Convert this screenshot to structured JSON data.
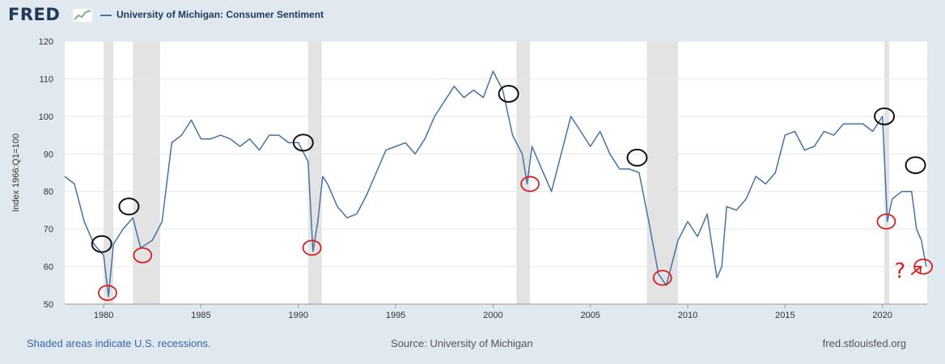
{
  "header": {
    "logo_text": "FRED",
    "logo_graph_color": "#7fb27f"
  },
  "chart_data": {
    "type": "line",
    "title": "",
    "series": [
      {
        "name": "University of Michigan: Consumer Sentiment",
        "color": "#4572a7",
        "x": [
          1978.0,
          1978.5,
          1979.0,
          1979.5,
          1980.0,
          1980.25,
          1980.5,
          1981.0,
          1981.5,
          1981.9,
          1982.5,
          1983.0,
          1983.5,
          1984.0,
          1984.5,
          1985.0,
          1985.5,
          1986.0,
          1986.5,
          1987.0,
          1987.5,
          1988.0,
          1988.5,
          1989.0,
          1989.5,
          1990.0,
          1990.5,
          1990.75,
          1991.0,
          1991.25,
          1991.5,
          1992.0,
          1992.5,
          1993.0,
          1993.5,
          1994.0,
          1994.5,
          1995.0,
          1995.5,
          1996.0,
          1996.5,
          1997.0,
          1997.5,
          1998.0,
          1998.5,
          1999.0,
          1999.5,
          2000.0,
          2000.5,
          2001.0,
          2001.5,
          2001.75,
          2002.0,
          2002.5,
          2003.0,
          2003.5,
          2004.0,
          2004.5,
          2005.0,
          2005.5,
          2006.0,
          2006.5,
          2007.0,
          2007.5,
          2008.0,
          2008.5,
          2008.9,
          2009.5,
          2010.0,
          2010.5,
          2011.0,
          2011.5,
          2011.75,
          2012.0,
          2012.5,
          2013.0,
          2013.5,
          2014.0,
          2014.5,
          2015.0,
          2015.5,
          2016.0,
          2016.5,
          2017.0,
          2017.5,
          2018.0,
          2018.5,
          2019.0,
          2019.5,
          2020.0,
          2020.25,
          2020.5,
          2021.0,
          2021.5,
          2021.75,
          2022.0,
          2022.25
        ],
        "y": [
          84,
          82,
          72,
          66,
          63,
          52,
          66,
          70,
          73,
          65,
          67,
          72,
          93,
          95,
          99,
          94,
          94,
          95,
          94,
          92,
          94,
          91,
          95,
          95,
          93,
          93,
          88,
          64,
          72,
          84,
          82,
          76,
          73,
          74,
          79,
          85,
          91,
          92,
          93,
          90,
          94,
          100,
          104,
          108,
          105,
          107,
          105,
          112,
          107,
          95,
          90,
          82,
          92,
          86,
          80,
          90,
          100,
          96,
          92,
          96,
          90,
          86,
          86,
          85,
          72,
          58,
          55,
          67,
          72,
          68,
          74,
          57,
          60,
          76,
          75,
          78,
          84,
          82,
          85,
          95,
          96,
          91,
          92,
          96,
          95,
          98,
          98,
          98,
          96,
          100,
          72,
          78,
          80,
          80,
          70,
          67,
          60
        ]
      }
    ],
    "xlim": [
      1978,
      2022.3
    ],
    "ylim": [
      50,
      120
    ],
    "xticks": [
      1980,
      1985,
      1990,
      1995,
      2000,
      2005,
      2010,
      2015,
      2020
    ],
    "yticks": [
      50,
      60,
      70,
      80,
      90,
      100,
      110,
      120
    ],
    "ylabel": "Index 1966:Q1=100",
    "recessions": [
      [
        1980.0,
        1980.5
      ],
      [
        1981.5,
        1982.9
      ],
      [
        1990.5,
        1991.2
      ],
      [
        2001.2,
        2001.9
      ],
      [
        2007.9,
        2009.5
      ],
      [
        2020.1,
        2020.35
      ]
    ],
    "grid": true,
    "annotations": {
      "black_circles": [
        [
          1979.9,
          66
        ],
        [
          1981.3,
          76
        ],
        [
          1990.25,
          93
        ],
        [
          2000.8,
          106
        ],
        [
          2007.4,
          89
        ],
        [
          2020.1,
          100
        ],
        [
          2021.7,
          87
        ]
      ],
      "red_circles": [
        [
          1980.2,
          53
        ],
        [
          1982.0,
          63
        ],
        [
          1990.7,
          65
        ],
        [
          2001.9,
          82
        ],
        [
          2008.7,
          57
        ],
        [
          2020.2,
          72
        ],
        [
          2022.1,
          60
        ]
      ],
      "red_marks_text": "?"
    }
  },
  "footer": {
    "note": "Shaded areas indicate U.S. recessions.",
    "source": "Source: University of Michigan",
    "site": "fred.stlouisfed.org"
  }
}
